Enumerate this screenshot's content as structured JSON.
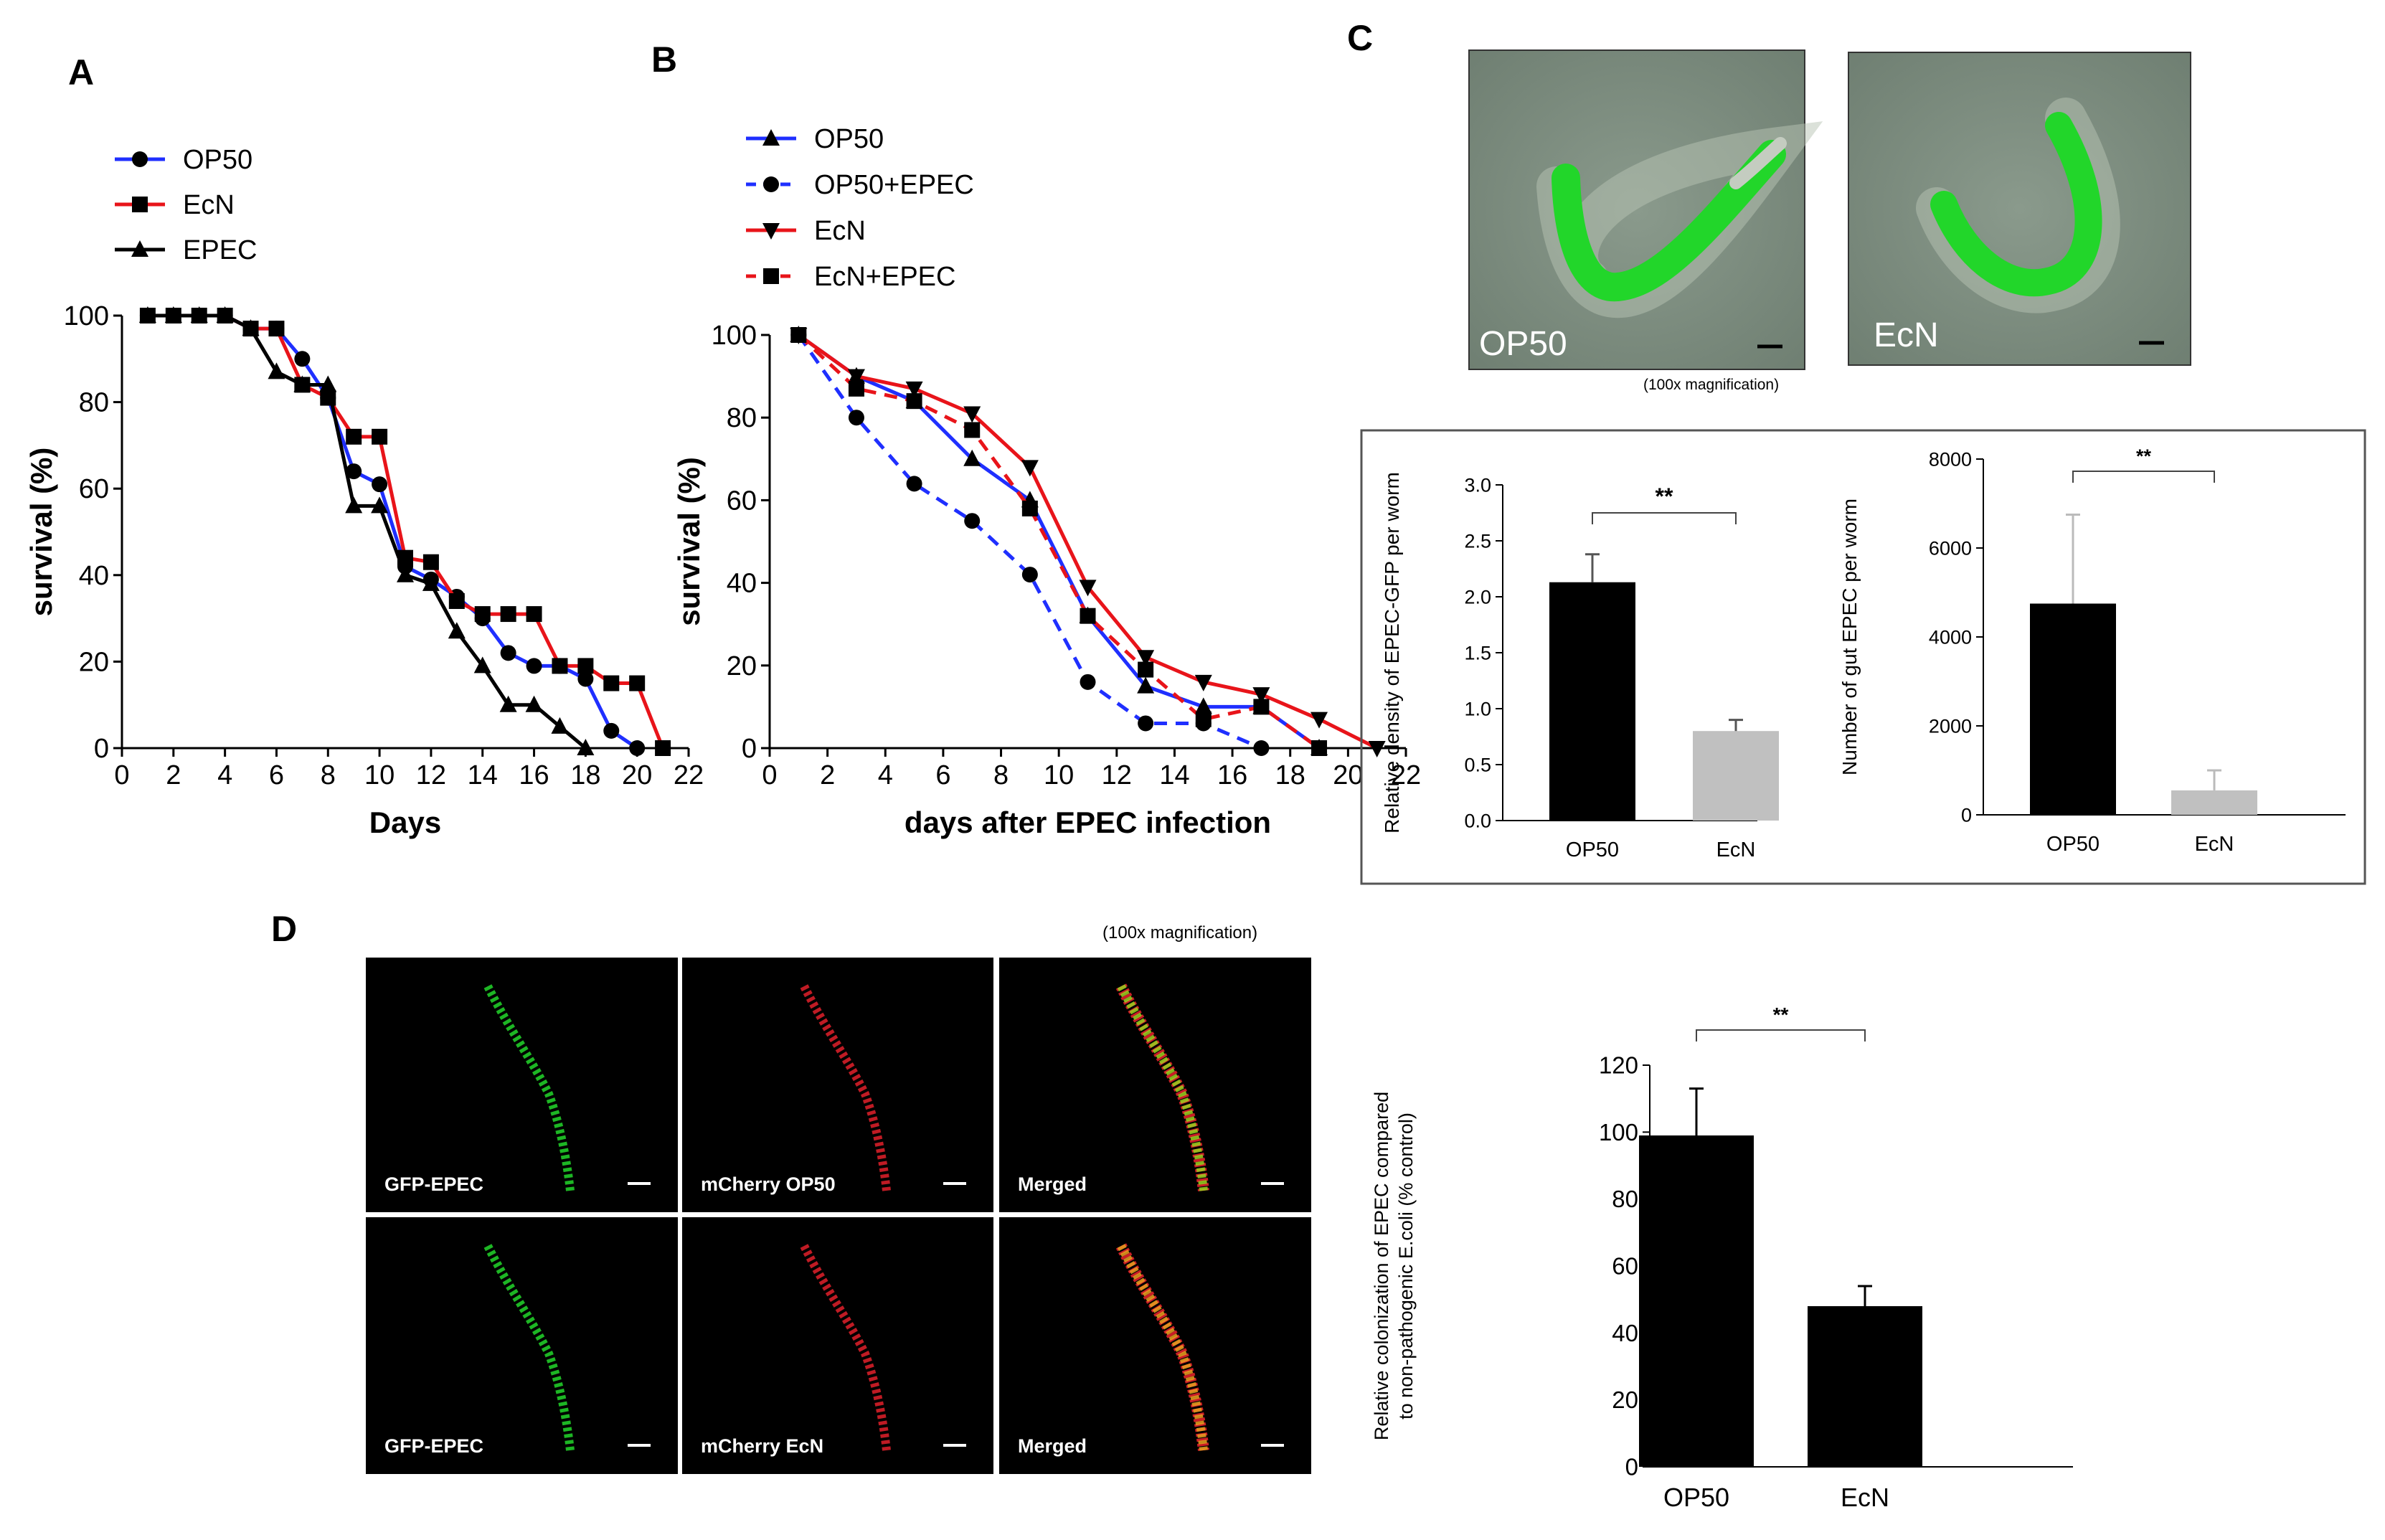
{
  "panels": {
    "A": "A",
    "B": "B",
    "C": "C",
    "D": "D"
  },
  "microscopy_c": {
    "labels": [
      "OP50",
      "EcN"
    ],
    "magnification": "(100x magnification)"
  },
  "microscopy_d": {
    "magnification": "(100x magnification)",
    "labels": [
      "GFP-EPEC",
      "mCherry OP50",
      "Merged",
      "GFP-EPEC",
      "mCherry EcN",
      "Merged"
    ]
  },
  "colors": {
    "op50": "#1f2fff",
    "ecn": "#e8141a",
    "epec": "#000000",
    "bar_dark": "#000000",
    "bar_light": "#c0c0c0",
    "gfp": "#22d62a",
    "mcherry": "#e0202a"
  },
  "chart_data": [
    {
      "id": "A",
      "type": "line",
      "xlabel": "Days",
      "ylabel": "survival (%)",
      "xlim": [
        0,
        22
      ],
      "ylim": [
        0,
        100
      ],
      "xticks": [
        0,
        2,
        4,
        6,
        8,
        10,
        12,
        14,
        16,
        18,
        20,
        22
      ],
      "yticks": [
        0,
        20,
        40,
        60,
        80,
        100
      ],
      "legend_position": "top-left",
      "series": [
        {
          "name": "OP50",
          "color": "#1f2fff",
          "marker": "circle",
          "dash": false,
          "x": [
            1,
            2,
            3,
            4,
            5,
            6,
            7,
            8,
            9,
            10,
            11,
            12,
            13,
            14,
            15,
            16,
            17,
            18,
            19,
            20
          ],
          "y": [
            100,
            100,
            100,
            100,
            97,
            97,
            90,
            81,
            64,
            61,
            42,
            39,
            35,
            30,
            22,
            19,
            19,
            16,
            4,
            0
          ]
        },
        {
          "name": "EcN",
          "color": "#e8141a",
          "marker": "square",
          "dash": false,
          "x": [
            1,
            2,
            3,
            4,
            5,
            6,
            7,
            8,
            9,
            10,
            11,
            12,
            13,
            14,
            15,
            16,
            17,
            18,
            19,
            20,
            21
          ],
          "y": [
            100,
            100,
            100,
            100,
            97,
            97,
            84,
            81,
            72,
            72,
            44,
            43,
            34,
            31,
            31,
            31,
            19,
            19,
            15,
            15,
            0
          ]
        },
        {
          "name": "EPEC",
          "color": "#000000",
          "marker": "triangle",
          "dash": false,
          "x": [
            1,
            2,
            3,
            4,
            5,
            6,
            7,
            8,
            9,
            10,
            11,
            12,
            13,
            14,
            15,
            16,
            17,
            18
          ],
          "y": [
            100,
            100,
            100,
            100,
            97,
            87,
            84,
            84,
            56,
            56,
            40,
            38,
            27,
            19,
            10,
            10,
            5,
            0
          ]
        }
      ]
    },
    {
      "id": "B",
      "type": "line",
      "xlabel": "days after EPEC infection",
      "ylabel": "survival (%)",
      "xlim": [
        0,
        22
      ],
      "ylim": [
        0,
        100
      ],
      "xticks": [
        0,
        2,
        4,
        6,
        8,
        10,
        12,
        14,
        16,
        18,
        20,
        22
      ],
      "yticks": [
        0,
        20,
        40,
        60,
        80,
        100
      ],
      "legend_position": "top-left",
      "series": [
        {
          "name": "OP50",
          "color": "#1f2fff",
          "marker": "triangle",
          "dash": false,
          "x": [
            1,
            3,
            5,
            7,
            9,
            11,
            13,
            15,
            17,
            19
          ],
          "y": [
            100,
            90,
            84,
            70,
            60,
            32,
            15,
            10,
            10,
            0
          ]
        },
        {
          "name": "OP50+EPEC",
          "color": "#1f2fff",
          "marker": "circle",
          "dash": true,
          "x": [
            1,
            3,
            5,
            7,
            9,
            11,
            13,
            15,
            17
          ],
          "y": [
            100,
            80,
            64,
            55,
            42,
            16,
            6,
            6,
            0
          ]
        },
        {
          "name": "EcN",
          "color": "#e8141a",
          "marker": "triangle-down",
          "dash": false,
          "x": [
            1,
            3,
            5,
            7,
            9,
            11,
            13,
            15,
            17,
            19,
            21
          ],
          "y": [
            100,
            90,
            87,
            81,
            68,
            39,
            22,
            16,
            13,
            7,
            0
          ]
        },
        {
          "name": "EcN+EPEC",
          "color": "#e8141a",
          "marker": "square",
          "dash": true,
          "x": [
            1,
            3,
            5,
            7,
            9,
            11,
            13,
            15,
            17,
            19
          ],
          "y": [
            100,
            87,
            84,
            77,
            58,
            32,
            19,
            7,
            10,
            0
          ]
        }
      ]
    },
    {
      "id": "C1",
      "type": "bar",
      "ylabel": "Relative density of EPEC-GFP per worm",
      "categories": [
        "OP50",
        "EcN"
      ],
      "values": [
        2.13,
        0.8
      ],
      "errors": [
        0.25,
        0.1
      ],
      "colors": [
        "#000000",
        "#c0c0c0"
      ],
      "ylim": [
        0,
        3.0
      ],
      "yticks": [
        "0.0",
        "0.5",
        "1.0",
        "1.5",
        "2.0",
        "2.5",
        "3.0"
      ],
      "significance": "**"
    },
    {
      "id": "C2",
      "type": "bar",
      "ylabel": "Number of gut EPEC per worm",
      "categories": [
        "OP50",
        "EcN"
      ],
      "values": [
        4750,
        550
      ],
      "errors": [
        2000,
        450
      ],
      "colors": [
        "#000000",
        "#c0c0c0"
      ],
      "ylim": [
        0,
        8000
      ],
      "yticks": [
        "0",
        "2000",
        "4000",
        "6000",
        "8000"
      ],
      "significance": "**"
    },
    {
      "id": "D",
      "type": "bar",
      "ylabel_line1": "Relative colonization of EPEC compared",
      "ylabel_line2": "to non-pathogenic E.coli (% control)",
      "categories": [
        "OP50",
        "EcN"
      ],
      "values": [
        99,
        48
      ],
      "errors": [
        14,
        6
      ],
      "colors": [
        "#000000",
        "#000000"
      ],
      "ylim": [
        0,
        120
      ],
      "yticks": [
        "0",
        "20",
        "40",
        "60",
        "80",
        "100",
        "120"
      ],
      "significance": "**"
    }
  ]
}
